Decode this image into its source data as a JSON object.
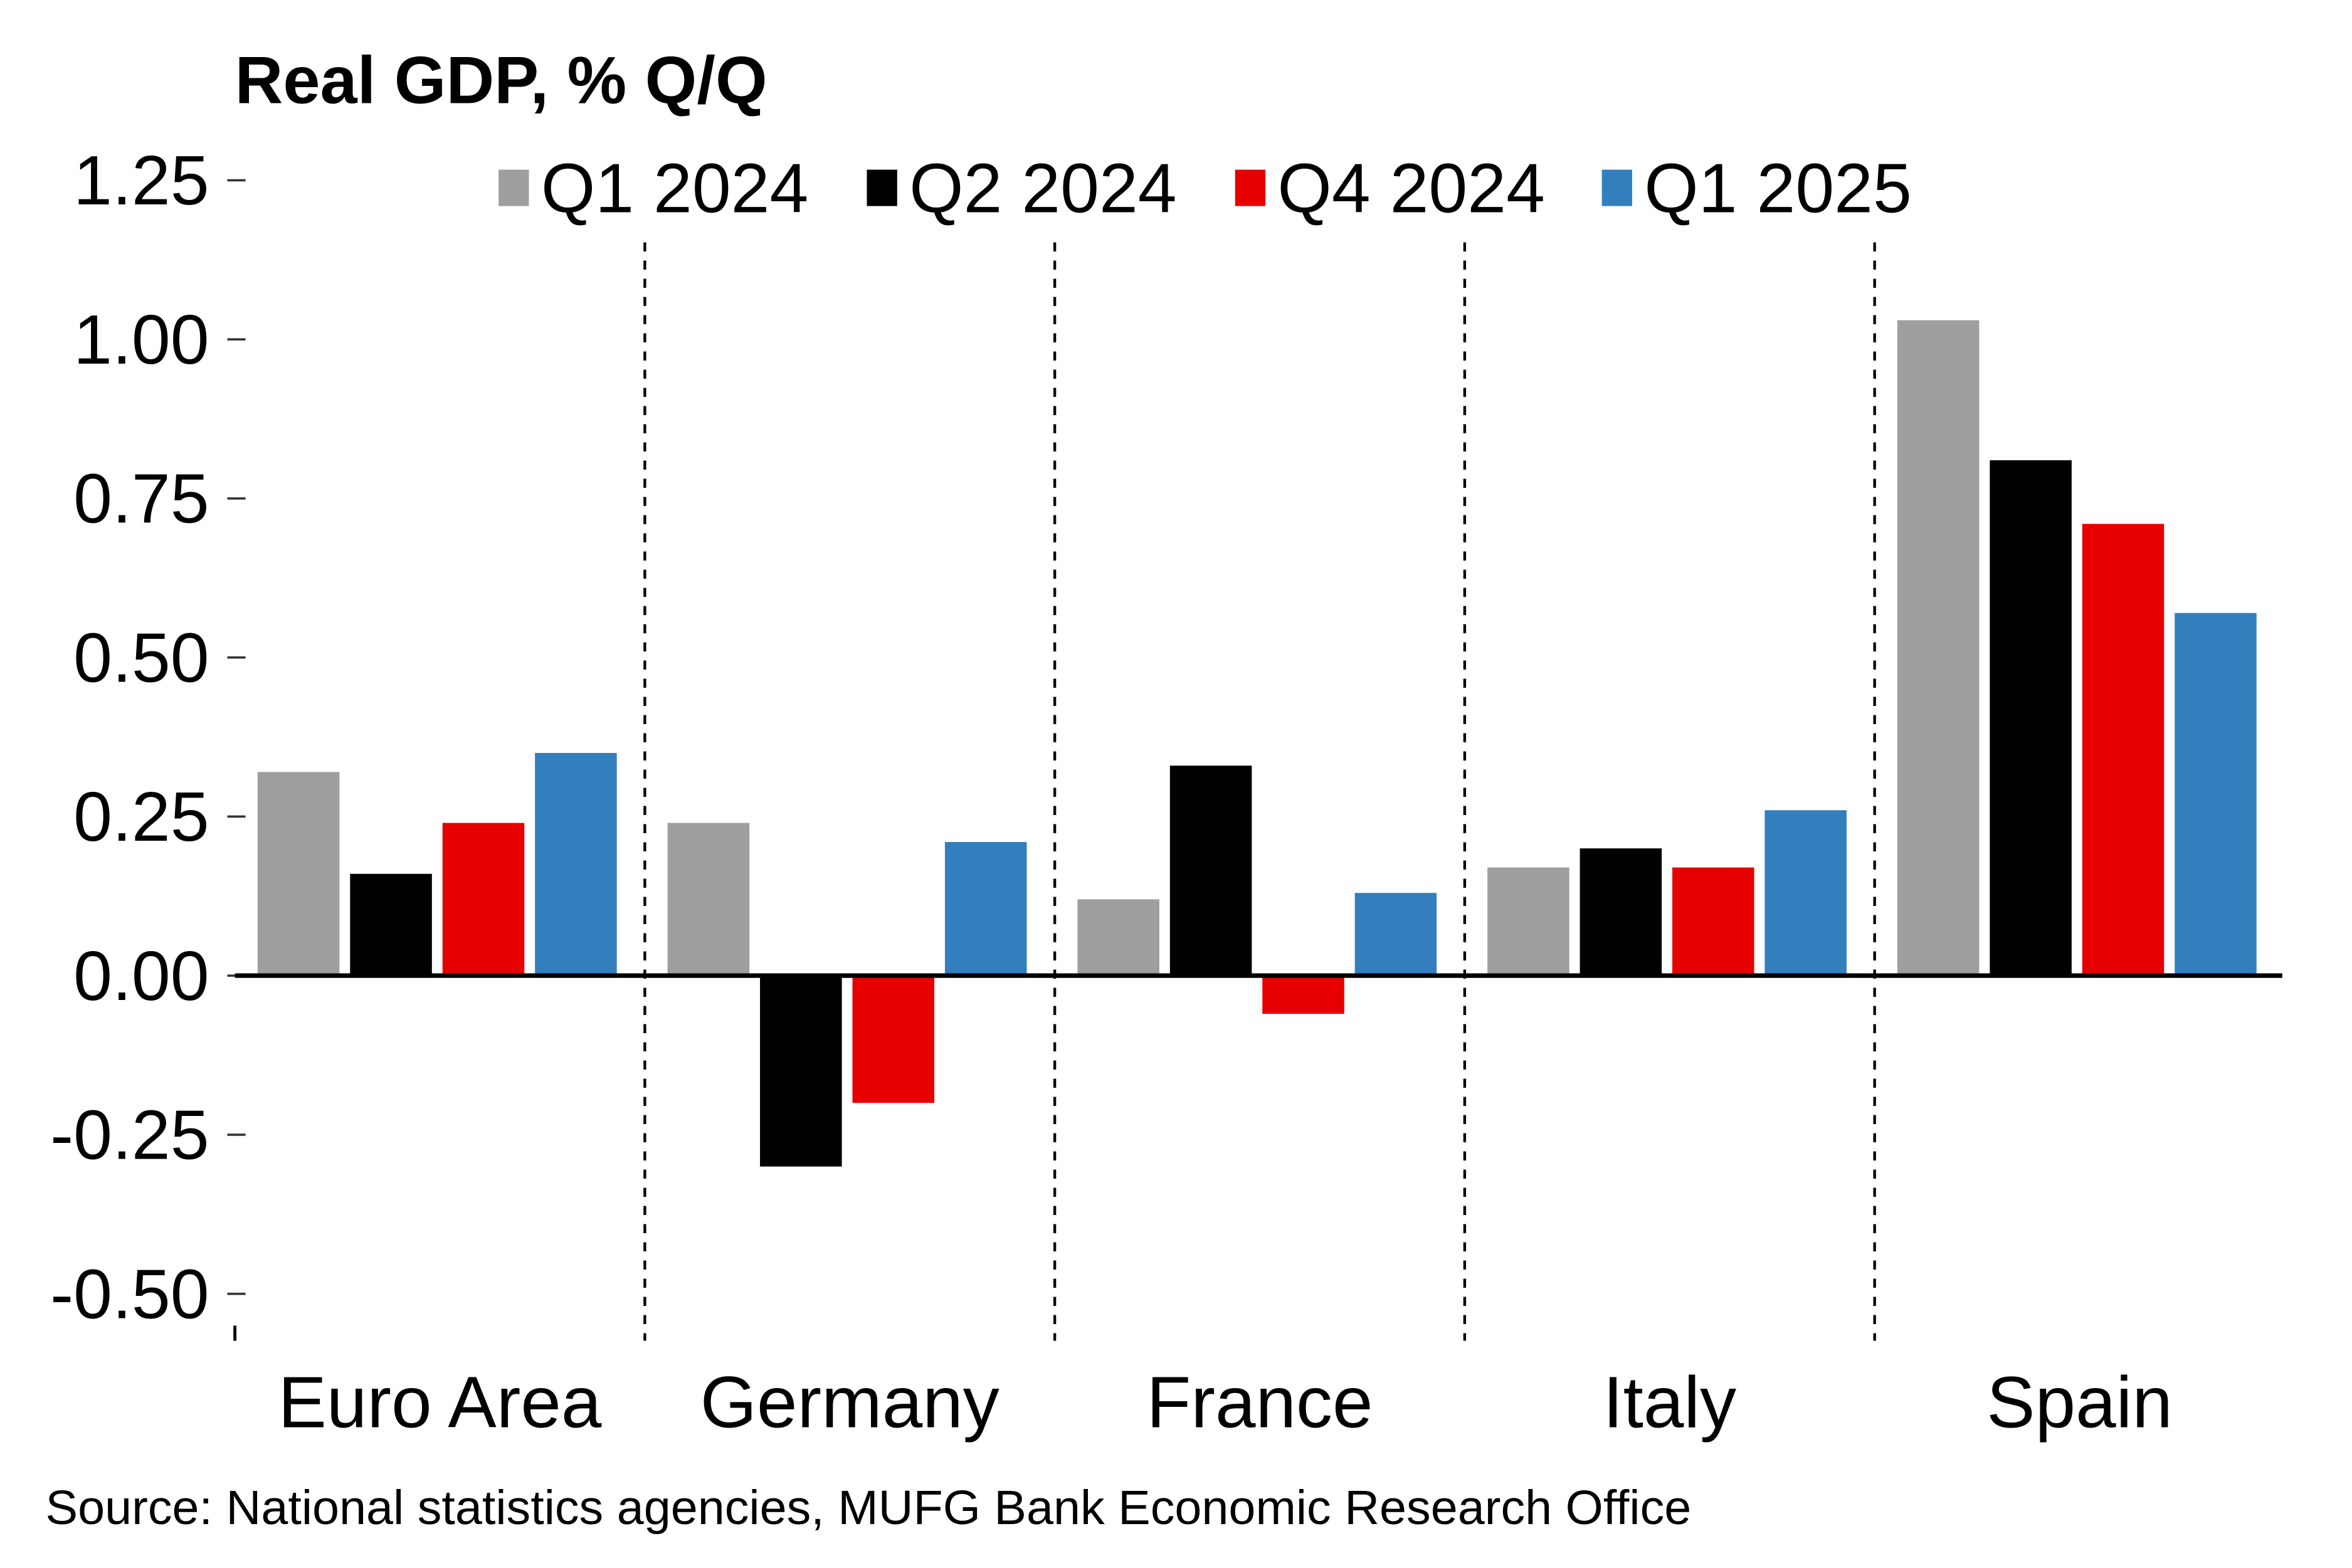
{
  "chart_data": {
    "type": "bar",
    "title": "Real GDP, % Q/Q",
    "xlabel": "",
    "ylabel": "",
    "ylim": [
      -0.55,
      1.25
    ],
    "yticks": [
      1.25,
      1.0,
      0.75,
      0.5,
      0.25,
      0.0,
      -0.25,
      -0.5
    ],
    "ytick_labels": [
      "1.25",
      "1.00",
      "0.75",
      "0.50",
      "0.25",
      "0.00",
      "-0.25",
      "-0.50"
    ],
    "grid": false,
    "legend_position": "top",
    "categories": [
      "Euro Area",
      "Germany",
      "France",
      "Italy",
      "Spain"
    ],
    "series": [
      {
        "name": "Q1 2024",
        "color": "#9e9e9e",
        "values": [
          0.32,
          0.24,
          0.12,
          0.17,
          1.03
        ]
      },
      {
        "name": "Q2 2024",
        "color": "#000000",
        "values": [
          0.16,
          -0.3,
          0.33,
          0.2,
          0.81
        ]
      },
      {
        "name": "Q4 2024",
        "color": "#e60000",
        "values": [
          0.24,
          -0.2,
          -0.06,
          0.17,
          0.71
        ]
      },
      {
        "name": "Q1 2025",
        "color": "#337fbd",
        "values": [
          0.35,
          0.21,
          0.13,
          0.26,
          0.57
        ]
      }
    ],
    "separators": "dashed vertical lines between categories",
    "source": "Source: National statistics agencies, MUFG Bank Economic Research Office"
  }
}
